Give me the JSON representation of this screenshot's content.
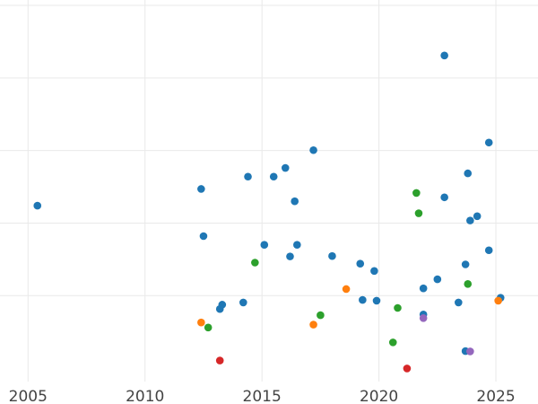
{
  "chart_data": {
    "type": "scatter",
    "title": "",
    "xlabel": "",
    "ylabel": "",
    "xlim": [
      2003.8,
      2026.8
    ],
    "ylim": [
      -3.7,
      101.5
    ],
    "grid": true,
    "legend": "none",
    "x_ticks": [
      2005,
      2010,
      2015,
      2020,
      2025
    ],
    "x_tick_labels": [
      "2005",
      "2010",
      "2015",
      "2020",
      "2025"
    ],
    "y_grid_values": [
      20,
      40,
      60,
      80,
      100
    ],
    "series": [
      {
        "color": "#1f77b4",
        "points": [
          {
            "x": 2005.4,
            "y": 44.8
          },
          {
            "x": 2012.4,
            "y": 49.4
          },
          {
            "x": 2012.5,
            "y": 36.4
          },
          {
            "x": 2013.2,
            "y": 16.3
          },
          {
            "x": 2013.3,
            "y": 17.5
          },
          {
            "x": 2014.2,
            "y": 18.1
          },
          {
            "x": 2014.4,
            "y": 52.8
          },
          {
            "x": 2015.1,
            "y": 34.0
          },
          {
            "x": 2015.5,
            "y": 52.8
          },
          {
            "x": 2016.0,
            "y": 55.2
          },
          {
            "x": 2016.2,
            "y": 30.8
          },
          {
            "x": 2016.4,
            "y": 46.0
          },
          {
            "x": 2016.5,
            "y": 34.0
          },
          {
            "x": 2017.2,
            "y": 60.1
          },
          {
            "x": 2018.0,
            "y": 30.9
          },
          {
            "x": 2019.2,
            "y": 28.8
          },
          {
            "x": 2019.3,
            "y": 18.8
          },
          {
            "x": 2019.8,
            "y": 26.8
          },
          {
            "x": 2019.9,
            "y": 18.6
          },
          {
            "x": 2021.9,
            "y": 22.0
          },
          {
            "x": 2021.9,
            "y": 14.8
          },
          {
            "x": 2022.5,
            "y": 24.5
          },
          {
            "x": 2022.8,
            "y": 86.2
          },
          {
            "x": 2022.8,
            "y": 47.1
          },
          {
            "x": 2023.4,
            "y": 18.1
          },
          {
            "x": 2023.7,
            "y": 28.6
          },
          {
            "x": 2023.7,
            "y": 4.7
          },
          {
            "x": 2023.8,
            "y": 53.7
          },
          {
            "x": 2023.9,
            "y": 40.7
          },
          {
            "x": 2024.2,
            "y": 41.9
          },
          {
            "x": 2024.7,
            "y": 62.2
          },
          {
            "x": 2024.7,
            "y": 32.5
          },
          {
            "x": 2025.2,
            "y": 19.4
          }
        ]
      },
      {
        "color": "#2ca02c",
        "points": [
          {
            "x": 2012.7,
            "y": 11.2
          },
          {
            "x": 2014.7,
            "y": 29.1
          },
          {
            "x": 2017.5,
            "y": 14.6
          },
          {
            "x": 2020.6,
            "y": 7.1
          },
          {
            "x": 2020.8,
            "y": 16.6
          },
          {
            "x": 2021.6,
            "y": 48.3
          },
          {
            "x": 2021.7,
            "y": 42.7
          },
          {
            "x": 2023.8,
            "y": 23.2
          }
        ]
      },
      {
        "color": "#ff7f0e",
        "points": [
          {
            "x": 2012.4,
            "y": 12.6
          },
          {
            "x": 2017.2,
            "y": 12.0
          },
          {
            "x": 2018.6,
            "y": 21.8
          },
          {
            "x": 2025.1,
            "y": 18.6
          }
        ]
      },
      {
        "color": "#d62728",
        "points": [
          {
            "x": 2013.2,
            "y": 2.1
          },
          {
            "x": 2021.2,
            "y": -0.1
          }
        ]
      },
      {
        "color": "#9467bd",
        "points": [
          {
            "x": 2021.9,
            "y": 13.8
          },
          {
            "x": 2023.9,
            "y": 4.6
          }
        ]
      }
    ]
  }
}
